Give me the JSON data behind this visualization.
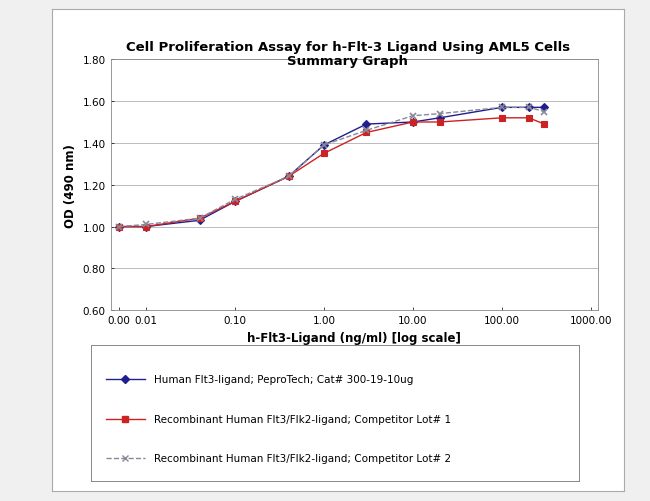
{
  "title_line1": "Cell Proliferation Assay for h-Flt-3 Ligand Using AML5 Cells",
  "title_line2": "Summary Graph",
  "xlabel": "h-Flt3-Ligand (ng/ml) [log scale]",
  "ylabel": "OD (490 nm)",
  "ylim": [
    0.6,
    1.8
  ],
  "yticks": [
    0.6,
    0.8,
    1.0,
    1.2,
    1.4,
    1.6,
    1.8
  ],
  "xtick_labels": [
    "0.00",
    "0.01",
    "0.10",
    "1.00",
    "10.00",
    "100.00",
    "1000.00"
  ],
  "xtick_positions": [
    0.005,
    0.01,
    0.1,
    1.0,
    10.0,
    100.0,
    1000.0
  ],
  "xlim_left": 0.004,
  "xlim_right": 1200,
  "series1_x": [
    0.005,
    0.01,
    0.04,
    0.1,
    0.4,
    1.0,
    3.0,
    10.0,
    20.0,
    100.0,
    200.0,
    300.0
  ],
  "series1_y": [
    1.0,
    1.0,
    1.03,
    1.12,
    1.24,
    1.39,
    1.49,
    1.5,
    1.52,
    1.57,
    1.57,
    1.57
  ],
  "series1_color": "#1F1F8F",
  "series1_label": "Human Flt3-ligand; PeproTech; Cat# 300-19-10ug",
  "series1_marker": "D",
  "series2_x": [
    0.005,
    0.01,
    0.04,
    0.1,
    0.4,
    1.0,
    3.0,
    10.0,
    20.0,
    100.0,
    200.0,
    300.0
  ],
  "series2_y": [
    1.0,
    1.0,
    1.04,
    1.12,
    1.24,
    1.35,
    1.45,
    1.5,
    1.5,
    1.52,
    1.52,
    1.49
  ],
  "series2_color": "#CC2222",
  "series2_label": "Recombinant Human Flt3/Flk2-ligand; Competitor Lot# 1",
  "series2_marker": "s",
  "series3_x": [
    0.005,
    0.01,
    0.04,
    0.1,
    0.4,
    1.0,
    3.0,
    10.0,
    20.0,
    100.0,
    200.0,
    300.0
  ],
  "series3_y": [
    1.0,
    1.01,
    1.04,
    1.13,
    1.24,
    1.39,
    1.46,
    1.53,
    1.54,
    1.57,
    1.57,
    1.55
  ],
  "series3_color": "#888899",
  "series3_label": "Recombinant Human Flt3/Flk2-ligand; Competitor Lot# 2",
  "series3_marker": "x",
  "background_color": "#F0F0F0",
  "plot_bg_color": "#FFFFFF",
  "grid_color": "#BBBBBB",
  "title_fontsize": 9.5,
  "axis_label_fontsize": 8.5,
  "tick_fontsize": 7.5,
  "legend_fontsize": 7.5
}
